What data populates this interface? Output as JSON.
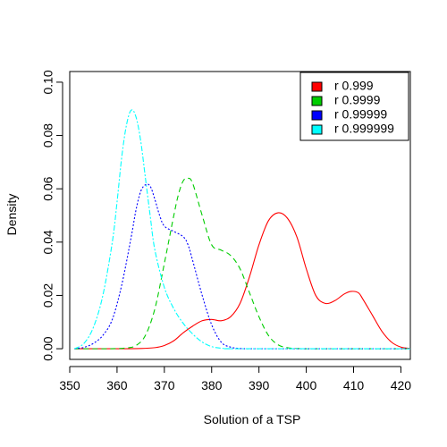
{
  "chart_data": {
    "type": "line",
    "title": "",
    "xlabel": "Solution of a TSP",
    "ylabel": "Density",
    "xlim": [
      350,
      422
    ],
    "ylim": [
      -0.004,
      0.104
    ],
    "xticks": [
      350,
      360,
      370,
      380,
      390,
      400,
      410,
      420
    ],
    "yticks": [
      0.0,
      0.02,
      0.04,
      0.06,
      0.08,
      0.1
    ],
    "ytick_labels": [
      "0.00",
      "0.02",
      "0.04",
      "0.06",
      "0.08",
      "0.10"
    ],
    "grid": false,
    "legend_position": "top-right",
    "series": [
      {
        "name": "r 0.999",
        "color": "#ff0000",
        "dash": "solid",
        "x": [
          351,
          360,
          365,
          368,
          370,
          372,
          374,
          376,
          378,
          380,
          382,
          384,
          386,
          388,
          390,
          392,
          394,
          396,
          398,
          400,
          402,
          404,
          406,
          408,
          409.5,
          411,
          412,
          414,
          416,
          418,
          420,
          422
        ],
        "y": [
          0.0,
          0.0,
          0.0001,
          0.0004,
          0.0012,
          0.003,
          0.006,
          0.0085,
          0.0105,
          0.011,
          0.0105,
          0.012,
          0.017,
          0.027,
          0.039,
          0.048,
          0.051,
          0.049,
          0.042,
          0.03,
          0.02,
          0.017,
          0.018,
          0.0205,
          0.0215,
          0.021,
          0.0185,
          0.0125,
          0.0065,
          0.0025,
          0.0006,
          0.0001
        ]
      },
      {
        "name": "r 0.9999",
        "color": "#00cd00",
        "dash": "6,4",
        "x": [
          351,
          358,
          362,
          364,
          366,
          368,
          370,
          372,
          373,
          374,
          375,
          376,
          378,
          380,
          382,
          384,
          386,
          388,
          390,
          392,
          394,
          396,
          398,
          400,
          404,
          410,
          422
        ],
        "y": [
          0.0,
          0.0,
          0.0003,
          0.0012,
          0.005,
          0.015,
          0.032,
          0.05,
          0.058,
          0.063,
          0.064,
          0.062,
          0.05,
          0.039,
          0.037,
          0.035,
          0.03,
          0.021,
          0.012,
          0.005,
          0.0015,
          0.0004,
          0.0001,
          0.0,
          0.0,
          0.0,
          0.0
        ]
      },
      {
        "name": "r 0.99999",
        "color": "#0000ff",
        "dash": "2,2",
        "x": [
          351,
          353,
          355,
          357,
          359,
          361,
          363,
          364,
          365,
          366,
          367,
          368,
          369,
          370,
          372,
          374,
          375,
          376,
          378,
          380,
          382,
          384,
          386,
          388,
          392,
          422
        ],
        "y": [
          0.0,
          0.0005,
          0.002,
          0.005,
          0.011,
          0.024,
          0.042,
          0.052,
          0.059,
          0.0615,
          0.061,
          0.056,
          0.05,
          0.046,
          0.044,
          0.042,
          0.039,
          0.033,
          0.02,
          0.009,
          0.0025,
          0.0006,
          0.0001,
          0.0,
          0.0,
          0.0
        ]
      },
      {
        "name": "r 0.999999",
        "color": "#00ffff",
        "dash": "6,2,2,2",
        "x": [
          351,
          353,
          355,
          357,
          359,
          360,
          361,
          362,
          363,
          364,
          365,
          366,
          367,
          368,
          370,
          372,
          374,
          376,
          378,
          380,
          382,
          384,
          386,
          422
        ],
        "y": [
          0.0,
          0.002,
          0.008,
          0.02,
          0.04,
          0.055,
          0.072,
          0.084,
          0.0895,
          0.087,
          0.078,
          0.064,
          0.05,
          0.037,
          0.023,
          0.015,
          0.0095,
          0.0055,
          0.0025,
          0.0008,
          0.0002,
          0.0,
          0.0,
          0.0
        ]
      }
    ]
  }
}
